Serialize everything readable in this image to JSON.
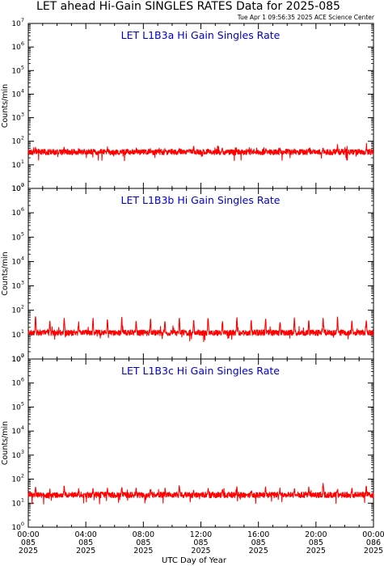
{
  "title": "LET ahead Hi-Gain SINGLES RATES Data for 2025-085",
  "timestamp": "Tue Apr  1 09:56:35 2025 ACE Science Center",
  "x_axis_title": "UTC Day of Year",
  "colors": {
    "series": "#ff0000",
    "panel_title": "#0000cc",
    "axes": "#000000"
  },
  "chart_data": [
    {
      "type": "line",
      "title": "LET L1B3a Hi Gain Singles Rate",
      "ylabel": "Counts/min",
      "yscale": "log",
      "ylim": [
        1,
        10000000
      ],
      "ytick_exponents": [
        "0",
        "1",
        "2",
        "3",
        "4",
        "5",
        "6",
        "7"
      ],
      "xlabel": "UTC Day of Year",
      "xlim": [
        "2025-085 00:00",
        "2025-086 00:00"
      ],
      "series": [
        {
          "baseline": 35,
          "hourly_peaks": [
            48,
            42,
            60,
            40,
            45,
            55,
            38,
            50,
            44,
            46,
            42,
            58,
            40,
            52,
            45,
            48,
            43,
            56,
            41,
            50,
            46,
            70,
            48,
            52
          ]
        }
      ]
    },
    {
      "type": "line",
      "title": "LET L1B3b Hi Gain Singles Rate",
      "ylabel": "Counts/min",
      "yscale": "log",
      "ylim": [
        1,
        10000000
      ],
      "ytick_exponents": [
        "0",
        "1",
        "2",
        "3",
        "4",
        "5",
        "6",
        "7"
      ],
      "xlabel": "UTC Day of Year",
      "xlim": [
        "2025-085 00:00",
        "2025-086 00:00"
      ],
      "series": [
        {
          "baseline": 12,
          "hourly_peaks": [
            60,
            40,
            55,
            35,
            50,
            45,
            55,
            40,
            50,
            38,
            52,
            42,
            55,
            40,
            48,
            45,
            52,
            40,
            55,
            45,
            48,
            50,
            42,
            45
          ]
        }
      ]
    },
    {
      "type": "line",
      "title": "LET L1B3c Hi Gain Singles Rate",
      "ylabel": "Counts/min",
      "yscale": "log",
      "ylim": [
        1,
        10000000
      ],
      "ytick_exponents": [
        "0",
        "1",
        "2",
        "3",
        "4",
        "5",
        "6",
        "7"
      ],
      "xlabel": "UTC Day of Year",
      "xlim": [
        "2025-085 00:00",
        "2025-086 00:00"
      ],
      "series": [
        {
          "baseline": 22,
          "hourly_peaks": [
            50,
            35,
            55,
            38,
            45,
            42,
            50,
            36,
            48,
            40,
            55,
            38,
            45,
            42,
            50,
            38,
            52,
            40,
            45,
            48,
            70,
            42,
            50,
            55
          ]
        }
      ]
    }
  ],
  "x_ticks": [
    {
      "time": "00:00",
      "day": "085",
      "year": "2025"
    },
    {
      "time": "04:00",
      "day": "085",
      "year": "2025"
    },
    {
      "time": "08:00",
      "day": "085",
      "year": "2025"
    },
    {
      "time": "12:00",
      "day": "085",
      "year": "2025"
    },
    {
      "time": "16:00",
      "day": "085",
      "year": "2025"
    },
    {
      "time": "20:00",
      "day": "085",
      "year": "2025"
    },
    {
      "time": "00:00",
      "day": "086",
      "year": "2025"
    }
  ]
}
